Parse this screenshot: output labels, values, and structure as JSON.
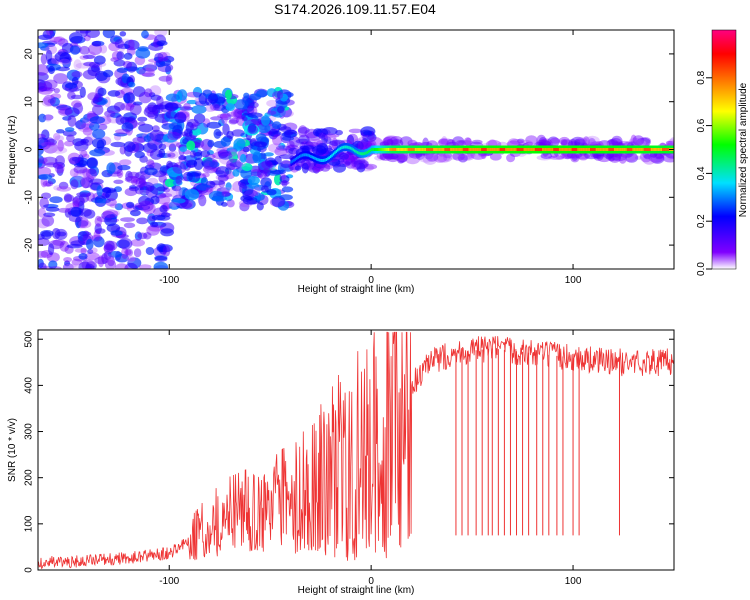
{
  "title": "S174.2026.109.11.57.E04",
  "chart_data": [
    {
      "type": "heatmap",
      "xlabel": "Height of straight line (km)",
      "ylabel": "Frequency (Hz)",
      "xlim": [
        -165,
        150
      ],
      "ylim": [
        -25,
        25
      ],
      "xticks": [
        -100,
        0,
        100
      ],
      "yticks": [
        -20,
        -10,
        0,
        10,
        20
      ],
      "colorbar": {
        "label": "Normalized spectral amplitude",
        "range": [
          0,
          1
        ],
        "ticks": [
          0.0,
          0.2,
          0.4,
          0.6,
          0.8
        ],
        "colors": [
          "#ffffff",
          "#8000ff",
          "#0000ff",
          "#00e0ff",
          "#00ff00",
          "#ffff00",
          "#ff8000",
          "#ff0000",
          "#ff0080"
        ]
      },
      "ridge": [
        {
          "x": -40,
          "freq": -2,
          "amp": 0.35
        },
        {
          "x": -30,
          "freq": -2,
          "amp": 0.4
        },
        {
          "x": -20,
          "freq": -1,
          "amp": 0.45
        },
        {
          "x": -10,
          "freq": 0,
          "amp": 0.5
        },
        {
          "x": 0,
          "freq": 0,
          "amp": 0.6
        },
        {
          "x": 10,
          "freq": 0,
          "amp": 0.85
        },
        {
          "x": 50,
          "freq": 0,
          "amp": 0.95
        },
        {
          "x": 100,
          "freq": 0,
          "amp": 0.95
        },
        {
          "x": 150,
          "freq": 0,
          "amp": 0.9
        }
      ],
      "scatter_zones": [
        {
          "x_from": -165,
          "x_to": -100,
          "freq_spread": 25,
          "amp": 0.25
        },
        {
          "x_from": -100,
          "x_to": -40,
          "freq_spread": 12,
          "amp": 0.3
        },
        {
          "x_from": -40,
          "x_to": 0,
          "freq_spread": 4,
          "amp": 0.2
        },
        {
          "x_from": 0,
          "x_to": 150,
          "freq_spread": 2,
          "amp": 0.1
        }
      ]
    },
    {
      "type": "line",
      "xlabel": "Height of straight line (km)",
      "ylabel": "SNR (10 * v/v)",
      "xlim": [
        -165,
        150
      ],
      "ylim": [
        0,
        520
      ],
      "xticks": [
        -100,
        0,
        100
      ],
      "yticks": [
        0,
        100,
        200,
        300,
        400,
        500
      ],
      "series_color": "#ee3333",
      "series": [
        {
          "name": "SNR",
          "x": [
            -165,
            -140,
            -120,
            -100,
            -90,
            -80,
            -70,
            -60,
            -50,
            -40,
            -30,
            -20,
            -10,
            0,
            10,
            20,
            30,
            40,
            60,
            80,
            100,
            120,
            150
          ],
          "y": [
            15,
            18,
            25,
            35,
            60,
            90,
            110,
            120,
            130,
            150,
            190,
            220,
            260,
            290,
            330,
            400,
            450,
            470,
            480,
            470,
            460,
            450,
            450
          ]
        }
      ],
      "dropout_positions": [
        42,
        45,
        48,
        52,
        55,
        58,
        60,
        63,
        66,
        69,
        72,
        75,
        78,
        82,
        85,
        88,
        92,
        95,
        100,
        103,
        123
      ],
      "dropout_level": 75
    }
  ]
}
